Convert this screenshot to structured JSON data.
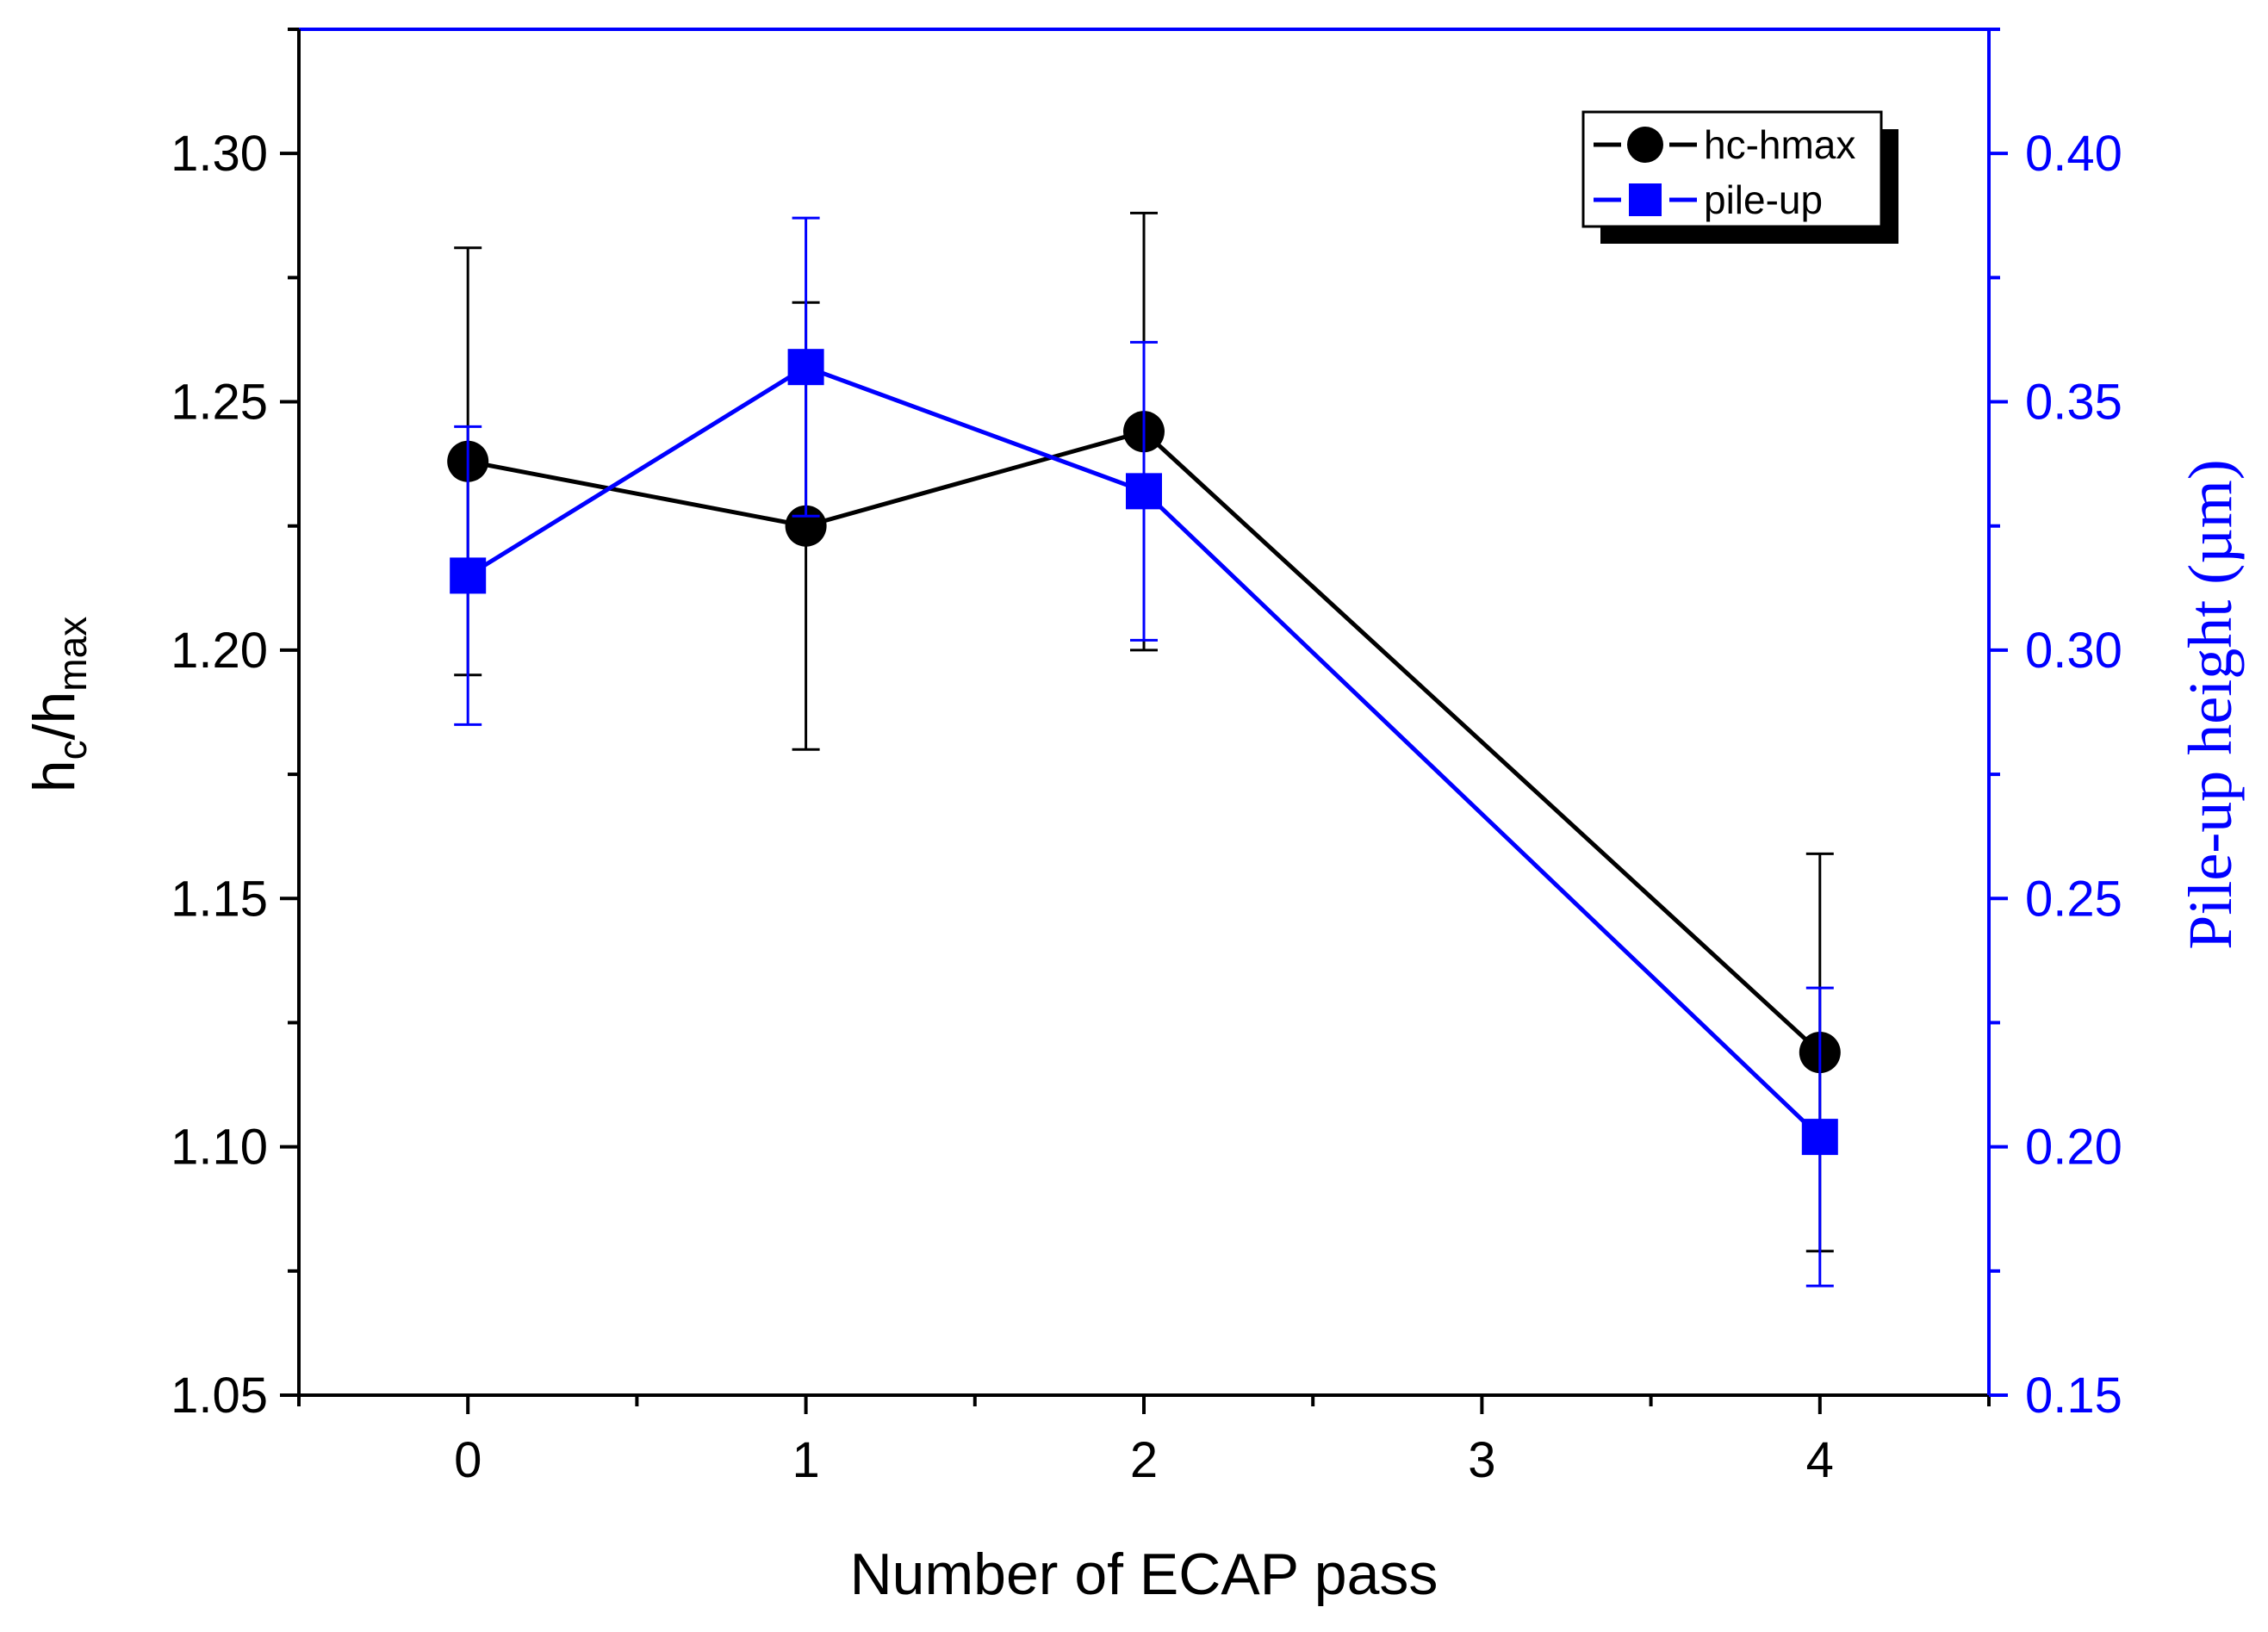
{
  "chart_data": {
    "type": "line",
    "title": "",
    "x": [
      0,
      1,
      2,
      4
    ],
    "xlim": [
      -0.5,
      4.5
    ],
    "xticks": [
      "0",
      "1",
      "2",
      "3",
      "4"
    ],
    "xlabel": "Number of ECAP pass",
    "ylabel_left": {
      "main": "h",
      "sub1": "c",
      "sep": "/h",
      "sub2": "max"
    },
    "ylabel_right": "Pile-up height (µm)",
    "ylim_left": [
      1.05,
      1.325
    ],
    "ylim_right": [
      0.15,
      0.425
    ],
    "yticks_left": [
      "1.05",
      "1.10",
      "1.15",
      "1.20",
      "1.25",
      "1.30"
    ],
    "yticks_right": [
      "0.15",
      "0.20",
      "0.25",
      "0.30",
      "0.35",
      "0.40"
    ],
    "legend_position": "top-right",
    "series": [
      {
        "name": "hc-hmax",
        "axis": "left",
        "marker": "circle",
        "color": "#000000",
        "values": [
          1.238,
          1.225,
          1.244,
          1.119
        ],
        "errors": [
          0.043,
          0.045,
          0.044,
          0.04
        ]
      },
      {
        "name": "pile-up",
        "axis": "right",
        "marker": "square",
        "color": "#0000ff",
        "values": [
          0.315,
          0.357,
          0.332,
          0.202
        ],
        "errors": [
          0.03,
          0.03,
          0.03,
          0.03
        ]
      }
    ]
  },
  "colors": {
    "left_axis": "#000000",
    "right_axis": "#0000ff",
    "legend_shadow": "#000000"
  }
}
